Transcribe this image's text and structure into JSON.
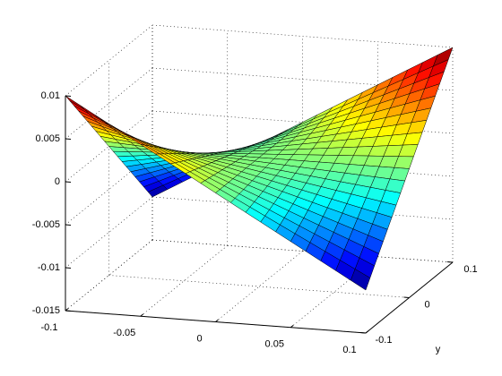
{
  "chart_data": {
    "type": "surface",
    "colormap": "jet",
    "grid": true,
    "ylabel": "y",
    "x": [
      -0.1,
      -0.09,
      -0.08,
      -0.07,
      -0.06,
      -0.05,
      -0.04,
      -0.03,
      -0.02,
      -0.01,
      0,
      0.01,
      0.02,
      0.03,
      0.04,
      0.05,
      0.06,
      0.07,
      0.08,
      0.09,
      0.1
    ],
    "y": [
      -0.1,
      -0.09,
      -0.08,
      -0.07,
      -0.06,
      -0.05,
      -0.04,
      -0.03,
      -0.02,
      -0.01,
      0,
      0.01,
      0.02,
      0.03,
      0.04,
      0.05,
      0.06,
      0.07,
      0.08,
      0.09,
      0.1
    ],
    "z": [
      [
        0.01,
        0.009,
        0.008,
        0.007,
        0.006,
        0.005,
        0.004,
        0.003,
        0.002,
        0.001,
        0,
        -0.001,
        -0.002,
        -0.003,
        -0.004,
        -0.005,
        -0.006,
        -0.007,
        -0.008,
        -0.009,
        -0.01
      ],
      [
        0.009,
        0.0081,
        0.0072,
        0.0063,
        0.0054,
        0.0045,
        0.0036,
        0.0027,
        0.0018,
        0.0009,
        0,
        -0.0009,
        -0.0018,
        -0.0027,
        -0.0036,
        -0.0045,
        -0.0054,
        -0.0063,
        -0.0072,
        -0.0081,
        -0.009
      ],
      [
        0.008,
        0.0072,
        0.0064,
        0.0056,
        0.0048,
        0.004,
        0.0032,
        0.0024,
        0.0016,
        0.0008,
        0,
        -0.0008,
        -0.0016,
        -0.0024,
        -0.0032,
        -0.004,
        -0.0048,
        -0.0056,
        -0.0064,
        -0.0072,
        -0.008
      ],
      [
        0.007,
        0.0063,
        0.0056,
        0.0049,
        0.0042,
        0.0035,
        0.0028,
        0.0021,
        0.0014,
        0.0007,
        0,
        -0.0007,
        -0.0014,
        -0.0021,
        -0.0028,
        -0.0035,
        -0.0042,
        -0.0049,
        -0.0056,
        -0.0063,
        -0.007
      ],
      [
        0.006,
        0.0054,
        0.0048,
        0.0042,
        0.0036,
        0.003,
        0.0024,
        0.0018,
        0.0012,
        0.0006,
        0,
        -0.0006,
        -0.0012,
        -0.0018,
        -0.0024,
        -0.003,
        -0.0036,
        -0.0042,
        -0.0048,
        -0.0054,
        -0.006
      ],
      [
        0.005,
        0.0045,
        0.004,
        0.0035,
        0.003,
        0.0025,
        0.002,
        0.0015,
        0.001,
        0.0005,
        0,
        -0.0005,
        -0.001,
        -0.0015,
        -0.002,
        -0.0025,
        -0.003,
        -0.0035,
        -0.004,
        -0.0045,
        -0.005
      ],
      [
        0.004,
        0.0036,
        0.0032,
        0.0028,
        0.0024,
        0.002,
        0.0016,
        0.0012,
        0.0008,
        0.0004,
        0,
        -0.0004,
        -0.0008,
        -0.0012,
        -0.0016,
        -0.002,
        -0.0024,
        -0.0028,
        -0.0032,
        -0.0036,
        -0.004
      ],
      [
        0.003,
        0.0027,
        0.0024,
        0.0021,
        0.0018,
        0.0015,
        0.0012,
        0.0009,
        0.0006,
        0.0003,
        0,
        -0.0003,
        -0.0006,
        -0.0009,
        -0.0012,
        -0.0015,
        -0.0018,
        -0.0021,
        -0.0024,
        -0.0027,
        -0.003
      ],
      [
        0.002,
        0.0018,
        0.0016,
        0.0014,
        0.0012,
        0.001,
        0.0008,
        0.0006,
        0.0004,
        0.0002,
        0,
        -0.0002,
        -0.0004,
        -0.0006,
        -0.0008,
        -0.001,
        -0.0012,
        -0.0014,
        -0.0016,
        -0.0018,
        -0.002
      ],
      [
        0.001,
        0.0009,
        0.0008,
        0.0007,
        0.0006,
        0.0005,
        0.0004,
        0.0003,
        0.0002,
        0.0001,
        0,
        -0.0001,
        -0.0002,
        -0.0003,
        -0.0004,
        -0.0005,
        -0.0006,
        -0.0007,
        -0.0008,
        -0.0009,
        -0.001
      ],
      [
        0,
        0,
        0,
        0,
        0,
        0,
        0,
        0,
        0,
        0,
        0,
        0,
        0,
        0,
        0,
        0,
        0,
        0,
        0,
        0,
        0
      ],
      [
        -0.001,
        -0.0009,
        -0.0008,
        -0.0007,
        -0.0006,
        -0.0005,
        -0.0004,
        -0.0003,
        -0.0002,
        -0.0001,
        0,
        0.0001,
        0.0002,
        0.0003,
        0.0004,
        0.0005,
        0.0006,
        0.0007,
        0.0008,
        0.0009,
        0.001
      ],
      [
        -0.002,
        -0.0018,
        -0.0016,
        -0.0014,
        -0.0012,
        -0.001,
        -0.0008,
        -0.0006,
        -0.0004,
        -0.0002,
        0,
        0.0002,
        0.0004,
        0.0006,
        0.0008,
        0.001,
        0.0012,
        0.0014,
        0.0016,
        0.0018,
        0.002
      ],
      [
        -0.003,
        -0.0027,
        -0.0024,
        -0.0021,
        -0.0018,
        -0.0015,
        -0.0012,
        -0.0009,
        -0.0006,
        -0.0003,
        0,
        0.0003,
        0.0006,
        0.0009,
        0.0012,
        0.0015,
        0.0018,
        0.0021,
        0.0024,
        0.0027,
        0.003
      ],
      [
        -0.004,
        -0.0036,
        -0.0032,
        -0.0028,
        -0.0024,
        -0.002,
        -0.0016,
        -0.0012,
        -0.0008,
        -0.0004,
        0,
        0.0004,
        0.0008,
        0.0012,
        0.0016,
        0.002,
        0.0024,
        0.0028,
        0.0032,
        0.0036,
        0.004
      ],
      [
        -0.005,
        -0.0045,
        -0.004,
        -0.0035,
        -0.003,
        -0.0025,
        -0.002,
        -0.0015,
        -0.001,
        -0.0005,
        0,
        0.0005,
        0.001,
        0.0015,
        0.002,
        0.0025,
        0.003,
        0.0035,
        0.004,
        0.0045,
        0.005
      ],
      [
        -0.006,
        -0.0054,
        -0.0048,
        -0.0042,
        -0.0036,
        -0.003,
        -0.0024,
        -0.0018,
        -0.0012,
        -0.0006,
        0,
        0.0006,
        0.0012,
        0.0018,
        0.0024,
        0.003,
        0.0036,
        0.0042,
        0.0048,
        0.0054,
        0.006
      ],
      [
        -0.007,
        -0.0063,
        -0.0056,
        -0.0049,
        -0.0042,
        -0.0035,
        -0.0028,
        -0.0021,
        -0.0014,
        -0.0007,
        0,
        0.0007,
        0.0014,
        0.0021,
        0.0028,
        0.0035,
        0.0042,
        0.0049,
        0.0056,
        0.0063,
        0.007
      ],
      [
        -0.008,
        -0.0072,
        -0.0064,
        -0.0056,
        -0.0048,
        -0.004,
        -0.0032,
        -0.0024,
        -0.0016,
        -0.0008,
        0,
        0.0008,
        0.0016,
        0.0024,
        0.0032,
        0.004,
        0.0048,
        0.0056,
        0.0064,
        0.0072,
        0.008
      ],
      [
        -0.009,
        -0.0081,
        -0.0072,
        -0.0063,
        -0.0054,
        -0.0045,
        -0.0036,
        -0.0027,
        -0.0018,
        -0.0009,
        0,
        0.0009,
        0.0018,
        0.0027,
        0.0036,
        0.0045,
        0.0054,
        0.0063,
        0.0072,
        0.0081,
        0.009
      ],
      [
        -0.01,
        -0.009,
        -0.008,
        -0.007,
        -0.006,
        -0.005,
        -0.004,
        -0.003,
        -0.002,
        -0.001,
        0,
        0.001,
        0.002,
        0.003,
        0.004,
        0.005,
        0.006,
        0.007,
        0.008,
        0.009,
        0.01
      ]
    ],
    "xlim": [
      -0.1,
      0.1
    ],
    "ylim": [
      -0.1,
      0.1
    ],
    "zlim": [
      -0.015,
      0.01
    ],
    "xticks": [
      -0.1,
      -0.05,
      0,
      0.05,
      0.1
    ],
    "yticks": [
      -0.1,
      0,
      0.1
    ],
    "zticks": [
      -0.015,
      -0.01,
      -0.005,
      0,
      0.005,
      0.01
    ]
  }
}
